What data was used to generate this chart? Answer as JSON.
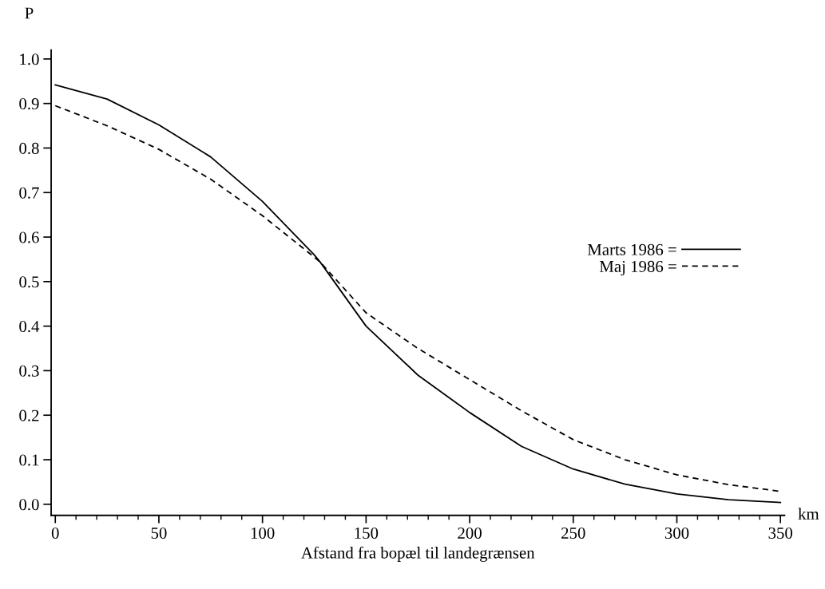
{
  "chart_data": {
    "type": "line",
    "xlabel": "Afstand fra bopæl til landegrænsen",
    "ylabel": "P",
    "annotations": [
      "km"
    ],
    "x": [
      0,
      25,
      50,
      75,
      100,
      125,
      128,
      150,
      175,
      200,
      225,
      250,
      275,
      300,
      325,
      350
    ],
    "series": [
      {
        "name": "Marts 1986 =",
        "color": "#000000",
        "line_style": "solid",
        "values": [
          0.942,
          0.91,
          0.852,
          0.78,
          0.68,
          0.56,
          0.543,
          0.4,
          0.29,
          0.206,
          0.13,
          0.079,
          0.045,
          0.023,
          0.01,
          0.004
        ]
      },
      {
        "name": "Maj 1986 =",
        "color": "#000000",
        "line_style": "dashed",
        "values": [
          0.895,
          0.85,
          0.797,
          0.73,
          0.648,
          0.555,
          0.543,
          0.43,
          0.35,
          0.28,
          0.21,
          0.145,
          0.1,
          0.066,
          0.044,
          0.029
        ]
      }
    ],
    "xlim": [
      -2,
      352
    ],
    "ylim": [
      -0.025,
      1.02
    ],
    "xticks": [
      0,
      {
        "value": 10,
        "label": null
      },
      {
        "value": 20,
        "label": null
      },
      {
        "value": 30,
        "label": null
      },
      {
        "value": 40,
        "label": null
      },
      50,
      {
        "value": 60,
        "label": null
      },
      {
        "value": 70,
        "label": null
      },
      {
        "value": 80,
        "label": null
      },
      {
        "value": 90,
        "label": null
      },
      100,
      {
        "value": 110,
        "label": null
      },
      {
        "value": 120,
        "label": null
      },
      {
        "value": 130,
        "label": null
      },
      {
        "value": 140,
        "label": null
      },
      150,
      {
        "value": 160,
        "label": null
      },
      {
        "value": 170,
        "label": null
      },
      {
        "value": 180,
        "label": null
      },
      {
        "value": 190,
        "label": null
      },
      200,
      {
        "value": 210,
        "label": null
      },
      {
        "value": 220,
        "label": null
      },
      {
        "value": 230,
        "label": null
      },
      {
        "value": 240,
        "label": null
      },
      250,
      {
        "value": 260,
        "label": null
      },
      {
        "value": 270,
        "label": null
      },
      {
        "value": 280,
        "label": null
      },
      {
        "value": 290,
        "label": null
      },
      300,
      {
        "value": 310,
        "label": null
      },
      {
        "value": 320,
        "label": null
      },
      {
        "value": 330,
        "label": null
      },
      {
        "value": 340,
        "label": null
      },
      350
    ],
    "yticks": [
      {
        "value": 0,
        "label": "0.0"
      },
      0.1,
      0.2,
      0.3,
      0.4,
      0.5,
      0.6,
      0.7,
      0.8,
      0.9,
      {
        "value": 1,
        "label": "1.0"
      }
    ],
    "grid": false,
    "legend": "right",
    "marker": "none"
  }
}
